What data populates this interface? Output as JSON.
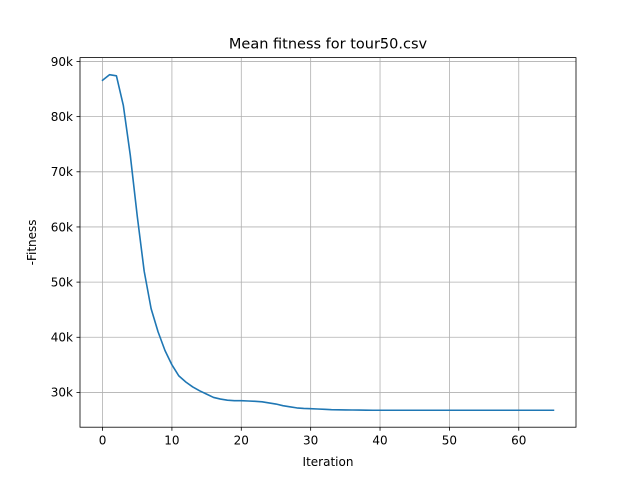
{
  "chart_data": {
    "type": "line",
    "title": "Mean fitness for tour50.csv",
    "xlabel": "Iteration",
    "ylabel": "-Fitness",
    "xlim": [
      -3.25,
      68.25
    ],
    "ylim": [
      23700,
      90700
    ],
    "grid": true,
    "x_ticks": [
      0,
      10,
      20,
      30,
      40,
      50,
      60
    ],
    "x_tick_labels": [
      "0",
      "10",
      "20",
      "30",
      "40",
      "50",
      "60"
    ],
    "y_ticks": [
      30000,
      40000,
      50000,
      60000,
      70000,
      80000,
      90000
    ],
    "y_tick_labels": [
      "30k",
      "40k",
      "50k",
      "60k",
      "70k",
      "80k",
      "90k"
    ],
    "line_color": "#1f77b4",
    "x": [
      0,
      1,
      2,
      3,
      4,
      5,
      6,
      7,
      8,
      9,
      10,
      11,
      12,
      13,
      14,
      15,
      16,
      17,
      18,
      19,
      20,
      21,
      22,
      23,
      24,
      25,
      26,
      27,
      28,
      29,
      30,
      31,
      32,
      33,
      34,
      35,
      36,
      37,
      38,
      39,
      40,
      41,
      42,
      43,
      44,
      45,
      46,
      47,
      48,
      49,
      50,
      51,
      52,
      53,
      54,
      55,
      56,
      57,
      58,
      59,
      60,
      61,
      62,
      63,
      64,
      65
    ],
    "series": [
      {
        "values": [
          86600,
          87600,
          87400,
          82000,
          73000,
          62000,
          52000,
          45200,
          41000,
          37600,
          35000,
          33000,
          31900,
          31000,
          30300,
          29700,
          29100,
          28800,
          28600,
          28500,
          28500,
          28450,
          28400,
          28300,
          28100,
          27900,
          27600,
          27400,
          27200,
          27100,
          27050,
          27000,
          26950,
          26880,
          26850,
          26830,
          26820,
          26800,
          26780,
          26770,
          26770,
          26770,
          26770,
          26770,
          26770,
          26770,
          26770,
          26770,
          26770,
          26770,
          26770,
          26770,
          26770,
          26770,
          26770,
          26770,
          26770,
          26770,
          26770,
          26770,
          26770,
          26770,
          26770,
          26770,
          26770,
          26770
        ]
      }
    ]
  }
}
